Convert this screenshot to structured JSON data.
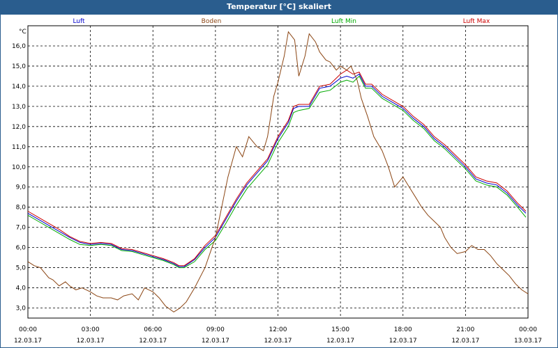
{
  "window": {
    "title": "Temperatur [°C] skaliert"
  },
  "chart_data": {
    "type": "line",
    "title": "Temperatur [°C] skaliert",
    "ylabel": "°C",
    "xlabel": "",
    "xlim": [
      0,
      24
    ],
    "ylim": [
      2.5,
      17.0
    ],
    "grid": true,
    "yticks": [
      3.0,
      4.0,
      5.0,
      6.0,
      7.0,
      8.0,
      9.0,
      10.0,
      11.0,
      12.0,
      13.0,
      14.0,
      15.0,
      16.0
    ],
    "ytick_labels": [
      "3,0",
      "4,0",
      "5,0",
      "6,0",
      "7,0",
      "8,0",
      "9,0",
      "10,0",
      "11,0",
      "12,0",
      "13,0",
      "14,0",
      "15,0",
      "16,0"
    ],
    "xticks": [
      0,
      3,
      6,
      9,
      12,
      15,
      18,
      21,
      24
    ],
    "xtick_time": [
      "00:00",
      "03:00",
      "06:00",
      "09:00",
      "12:00",
      "15:00",
      "18:00",
      "21:00",
      "00:00"
    ],
    "xtick_date": [
      "12.03.17",
      "12.03.17",
      "12.03.17",
      "12.03.17",
      "12.03.17",
      "12.03.17",
      "12.03.17",
      "12.03.17",
      "13.03.17"
    ],
    "legend": [
      {
        "name": "Luft",
        "color": "#0000cc"
      },
      {
        "name": "Boden",
        "color": "#8b4513"
      },
      {
        "name": "Luft Min",
        "color": "#00aa00"
      },
      {
        "name": "Luft Max",
        "color": "#cc0000"
      }
    ],
    "series": [
      {
        "name": "Luft",
        "color": "#0000cc",
        "x": [
          0,
          0.5,
          1,
          1.5,
          2,
          2.5,
          3,
          3.5,
          4,
          4.5,
          5,
          5.5,
          6,
          6.5,
          7,
          7.25,
          7.5,
          8,
          8.5,
          9,
          9.5,
          10,
          10.5,
          11,
          11.5,
          12,
          12.5,
          12.75,
          13,
          13.5,
          14,
          14.5,
          15,
          15.3,
          15.6,
          15.9,
          16.2,
          16.5,
          17,
          17.5,
          18,
          18.5,
          19,
          19.5,
          20,
          20.5,
          21,
          21.5,
          22,
          22.5,
          23,
          23.5,
          23.9
        ],
        "y": [
          7.7,
          7.4,
          7.1,
          6.8,
          6.5,
          6.25,
          6.15,
          6.2,
          6.15,
          5.9,
          5.85,
          5.7,
          5.55,
          5.4,
          5.2,
          5.05,
          5.05,
          5.4,
          6.0,
          6.5,
          7.4,
          8.3,
          9.1,
          9.7,
          10.3,
          11.4,
          12.2,
          12.9,
          13.0,
          13.0,
          13.9,
          14.0,
          14.4,
          14.5,
          14.4,
          14.6,
          14.0,
          14.0,
          13.5,
          13.2,
          12.9,
          12.4,
          12.0,
          11.4,
          11.0,
          10.5,
          10.0,
          9.4,
          9.2,
          9.1,
          8.7,
          8.1,
          7.7
        ]
      },
      {
        "name": "Luft Max",
        "color": "#cc0000",
        "x": [
          0,
          0.5,
          1,
          1.5,
          2,
          2.5,
          3,
          3.5,
          4,
          4.5,
          5,
          5.5,
          6,
          6.5,
          7,
          7.25,
          7.5,
          8,
          8.5,
          9,
          9.5,
          10,
          10.5,
          11,
          11.5,
          12,
          12.5,
          12.75,
          13,
          13.5,
          14,
          14.5,
          15,
          15.3,
          15.6,
          15.9,
          16.2,
          16.5,
          17,
          17.5,
          18,
          18.5,
          19,
          19.5,
          20,
          20.5,
          21,
          21.5,
          22,
          22.5,
          23,
          23.5,
          23.9
        ],
        "y": [
          7.8,
          7.5,
          7.2,
          6.9,
          6.55,
          6.3,
          6.2,
          6.25,
          6.2,
          5.95,
          5.9,
          5.75,
          5.6,
          5.45,
          5.25,
          5.1,
          5.1,
          5.45,
          6.1,
          6.6,
          7.5,
          8.4,
          9.2,
          9.8,
          10.4,
          11.5,
          12.3,
          13.0,
          13.1,
          13.1,
          14.0,
          14.1,
          14.6,
          14.8,
          14.6,
          14.7,
          14.1,
          14.1,
          13.6,
          13.3,
          13.0,
          12.5,
          12.1,
          11.5,
          11.1,
          10.6,
          10.1,
          9.5,
          9.3,
          9.2,
          8.8,
          8.2,
          7.8
        ]
      },
      {
        "name": "Luft Min",
        "color": "#00aa00",
        "x": [
          0,
          0.5,
          1,
          1.5,
          2,
          2.5,
          3,
          3.5,
          4,
          4.5,
          5,
          5.5,
          6,
          6.5,
          7,
          7.25,
          7.5,
          8,
          8.5,
          9,
          9.5,
          10,
          10.5,
          11,
          11.5,
          12,
          12.5,
          12.75,
          13,
          13.5,
          14,
          14.5,
          15,
          15.3,
          15.6,
          15.9,
          16.2,
          16.5,
          17,
          17.5,
          18,
          18.5,
          19,
          19.5,
          20,
          20.5,
          21,
          21.5,
          22,
          22.5,
          23,
          23.5,
          23.9
        ],
        "y": [
          7.6,
          7.3,
          7.0,
          6.7,
          6.4,
          6.15,
          6.1,
          6.15,
          6.1,
          5.85,
          5.8,
          5.65,
          5.5,
          5.35,
          5.15,
          5.0,
          5.0,
          5.3,
          5.9,
          6.35,
          7.2,
          8.1,
          8.9,
          9.5,
          10.1,
          11.2,
          12.0,
          12.7,
          12.8,
          12.9,
          13.7,
          13.8,
          14.2,
          14.3,
          14.2,
          14.5,
          13.9,
          13.9,
          13.4,
          13.1,
          12.8,
          12.3,
          11.9,
          11.3,
          10.9,
          10.4,
          9.9,
          9.3,
          9.1,
          9.0,
          8.6,
          8.0,
          7.5
        ]
      },
      {
        "name": "Boden",
        "color": "#8b4513",
        "x": [
          0,
          0.3,
          0.6,
          1,
          1.2,
          1.5,
          1.8,
          2,
          2.3,
          2.6,
          3,
          3.3,
          3.6,
          4,
          4.3,
          4.6,
          5,
          5.3,
          5.6,
          6,
          6.3,
          6.6,
          7,
          7.3,
          7.6,
          8,
          8.5,
          9,
          9.3,
          9.6,
          10,
          10.3,
          10.6,
          11,
          11.3,
          11.5,
          11.8,
          12,
          12.3,
          12.5,
          12.8,
          13,
          13.3,
          13.5,
          13.8,
          14,
          14.3,
          14.5,
          14.8,
          15,
          15.3,
          15.5,
          15.8,
          16,
          16.3,
          16.6,
          17,
          17.3,
          17.6,
          18,
          18.3,
          18.6,
          18.9,
          19.2,
          19.5,
          19.8,
          20,
          20.3,
          20.6,
          21,
          21.3,
          21.6,
          21.9,
          22.2,
          22.5,
          22.8,
          23.1,
          23.4,
          23.7,
          24
        ],
        "y": [
          5.3,
          5.1,
          5.0,
          4.5,
          4.4,
          4.1,
          4.3,
          4.1,
          3.9,
          4.0,
          3.8,
          3.6,
          3.5,
          3.5,
          3.4,
          3.6,
          3.7,
          3.4,
          4.0,
          3.8,
          3.5,
          3.1,
          2.8,
          3.0,
          3.3,
          4.0,
          5.0,
          6.5,
          8.0,
          9.5,
          11.0,
          10.5,
          11.5,
          11.0,
          10.8,
          11.5,
          13.5,
          14.2,
          15.5,
          16.7,
          16.3,
          14.5,
          15.5,
          16.6,
          16.2,
          15.7,
          15.3,
          15.2,
          14.8,
          15.0,
          14.8,
          15.0,
          14.3,
          13.4,
          12.5,
          11.5,
          10.8,
          10.0,
          9.0,
          9.5,
          9.0,
          8.5,
          8.0,
          7.6,
          7.3,
          7.0,
          6.5,
          6.0,
          5.7,
          5.8,
          6.1,
          5.9,
          5.9,
          5.6,
          5.2,
          4.9,
          4.6,
          4.2,
          3.9,
          3.7
        ]
      }
    ]
  }
}
